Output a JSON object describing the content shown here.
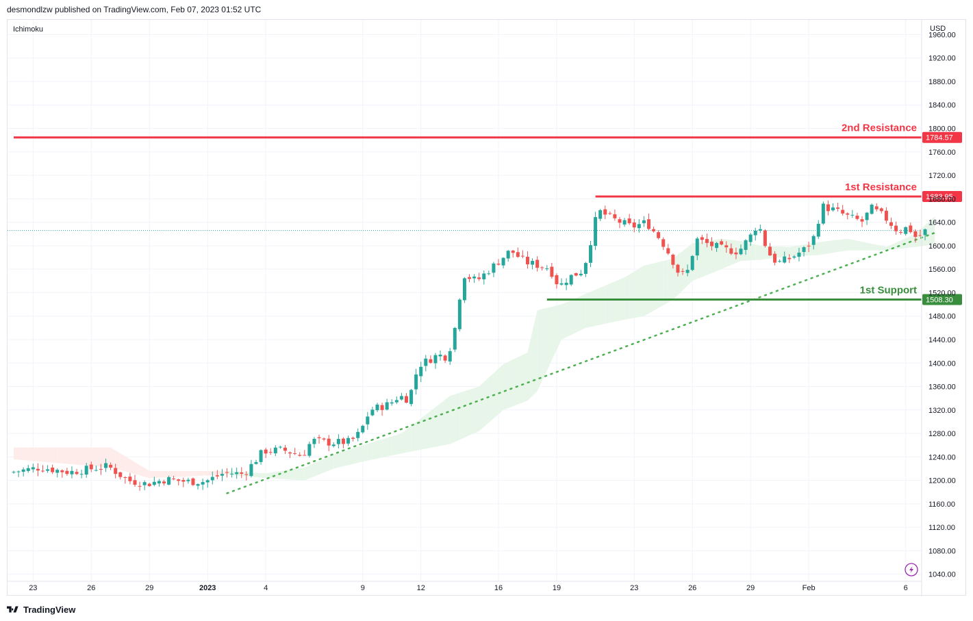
{
  "header": {
    "publish_line": "desmondlzw published on TradingView.com, Feb 07, 2023 01:52 UTC"
  },
  "footer": {
    "brand": "TradingView",
    "logo_icon": "tradingview-logo-icon"
  },
  "colors": {
    "up": "#26a69a",
    "down": "#ef5350",
    "resistance": "#f23645",
    "support": "#388e3c",
    "trend": "#4caf50",
    "cloud_up": "#e8f5e9",
    "cloud_down": "#fdecea"
  },
  "chart_data": {
    "type": "candlestick",
    "indicator_label": "Ichimoku",
    "currency_label": "USD",
    "y_ticks": [
      "1960.00",
      "1920.00",
      "1880.00",
      "1840.00",
      "1800.00",
      "1760.00",
      "1720.00",
      "1680.00",
      "1640.00",
      "1600.00",
      "1560.00",
      "1520.00",
      "1480.00",
      "1440.00",
      "1400.00",
      "1360.00",
      "1320.00",
      "1280.00",
      "1240.00",
      "1200.00",
      "1160.00",
      "1120.00",
      "1080.00",
      "1040.00"
    ],
    "y_tick_values": [
      1960,
      1920,
      1880,
      1840,
      1800,
      1760,
      1720,
      1680,
      1640,
      1600,
      1560,
      1520,
      1480,
      1440,
      1400,
      1360,
      1320,
      1280,
      1240,
      1200,
      1160,
      1120,
      1080,
      1040
    ],
    "ylim": [
      1028,
      1985
    ],
    "x_ticks": [
      {
        "label": "23",
        "bar": 4
      },
      {
        "label": "26",
        "bar": 16
      },
      {
        "label": "29",
        "bar": 28
      },
      {
        "label": "2023",
        "bar": 40,
        "bold": true
      },
      {
        "label": "4",
        "bar": 52
      },
      {
        "label": "9",
        "bar": 72
      },
      {
        "label": "12",
        "bar": 84
      },
      {
        "label": "16",
        "bar": 100
      },
      {
        "label": "19",
        "bar": 112
      },
      {
        "label": "23",
        "bar": 128
      },
      {
        "label": "26",
        "bar": 140
      },
      {
        "label": "29",
        "bar": 152
      },
      {
        "label": "Feb",
        "bar": 164
      },
      {
        "label": "6",
        "bar": 184
      }
    ],
    "anchors": [
      [
        0,
        1214
      ],
      [
        6,
        1222
      ],
      [
        12,
        1214
      ],
      [
        15,
        1218
      ],
      [
        20,
        1224
      ],
      [
        24,
        1200
      ],
      [
        28,
        1194
      ],
      [
        32,
        1202
      ],
      [
        36,
        1198
      ],
      [
        40,
        1198
      ],
      [
        44,
        1213
      ],
      [
        48,
        1211
      ],
      [
        52,
        1250
      ],
      [
        56,
        1252
      ],
      [
        60,
        1242
      ],
      [
        62,
        1268
      ],
      [
        66,
        1264
      ],
      [
        70,
        1266
      ],
      [
        72,
        1282
      ],
      [
        74,
        1320
      ],
      [
        78,
        1330
      ],
      [
        80,
        1344
      ],
      [
        82,
        1338
      ],
      [
        84,
        1396
      ],
      [
        88,
        1414
      ],
      [
        90,
        1410
      ],
      [
        92,
        1476
      ],
      [
        93,
        1552
      ],
      [
        96,
        1540
      ],
      [
        99,
        1562
      ],
      [
        103,
        1592
      ],
      [
        106,
        1572
      ],
      [
        109,
        1566
      ],
      [
        111,
        1562
      ],
      [
        113,
        1530
      ],
      [
        115,
        1546
      ],
      [
        118,
        1558
      ],
      [
        119,
        1590
      ],
      [
        121,
        1660
      ],
      [
        124,
        1646
      ],
      [
        128,
        1632
      ],
      [
        131,
        1640
      ],
      [
        134,
        1610
      ],
      [
        136,
        1582
      ],
      [
        138,
        1548
      ],
      [
        140,
        1560
      ],
      [
        141,
        1612
      ],
      [
        144,
        1602
      ],
      [
        147,
        1594
      ],
      [
        150,
        1590
      ],
      [
        153,
        1622
      ],
      [
        154,
        1640
      ],
      [
        156,
        1590
      ],
      [
        158,
        1570
      ],
      [
        161,
        1580
      ],
      [
        164,
        1596
      ],
      [
        166,
        1620
      ],
      [
        167,
        1668
      ],
      [
        170,
        1660
      ],
      [
        173,
        1648
      ],
      [
        176,
        1640
      ],
      [
        177,
        1666
      ],
      [
        180,
        1650
      ],
      [
        183,
        1624
      ],
      [
        185,
        1632
      ],
      [
        187,
        1610
      ],
      [
        188,
        1625
      ]
    ],
    "candles_count": 189,
    "levels": [
      {
        "name": "2nd Resistance",
        "value": 1784.57,
        "badge": "1784.57",
        "color": "#f23645",
        "start_bar": 0
      },
      {
        "name": "1st Resistance",
        "value": 1683.95,
        "badge": "1683.95",
        "color": "#f23645",
        "start_bar": 120
      },
      {
        "name": "1st Support",
        "value": 1508.3,
        "badge": "1508.30",
        "color": "#388e3c",
        "start_bar": 110
      }
    ],
    "trendline": {
      "from": {
        "bar": 44,
        "value": 1178
      },
      "to": {
        "bar": 190,
        "value": 1622
      },
      "style": "dotted"
    },
    "last_price_line": {
      "value": 1626
    },
    "cloud": {
      "top": [
        [
          0,
          1256
        ],
        [
          20,
          1256
        ],
        [
          28,
          1216
        ],
        [
          44,
          1216
        ],
        [
          52,
          1212
        ],
        [
          60,
          1222
        ],
        [
          66,
          1244
        ],
        [
          72,
          1260
        ],
        [
          80,
          1280
        ],
        [
          90,
          1344
        ],
        [
          96,
          1360
        ],
        [
          101,
          1398
        ],
        [
          106,
          1418
        ],
        [
          108,
          1490
        ],
        [
          113,
          1500
        ],
        [
          118,
          1518
        ],
        [
          126,
          1546
        ],
        [
          130,
          1566
        ],
        [
          136,
          1578
        ],
        [
          140,
          1604
        ],
        [
          146,
          1612
        ],
        [
          150,
          1608
        ],
        [
          154,
          1600
        ],
        [
          160,
          1598
        ],
        [
          166,
          1606
        ],
        [
          172,
          1612
        ],
        [
          180,
          1598
        ],
        [
          186,
          1620
        ],
        [
          190,
          1650
        ]
      ],
      "bottom": [
        [
          0,
          1236
        ],
        [
          20,
          1222
        ],
        [
          28,
          1204
        ],
        [
          44,
          1210
        ],
        [
          52,
          1204
        ],
        [
          60,
          1200
        ],
        [
          66,
          1220
        ],
        [
          72,
          1232
        ],
        [
          80,
          1246
        ],
        [
          90,
          1262
        ],
        [
          96,
          1284
        ],
        [
          101,
          1320
        ],
        [
          106,
          1336
        ],
        [
          108,
          1352
        ],
        [
          113,
          1440
        ],
        [
          118,
          1460
        ],
        [
          126,
          1474
        ],
        [
          130,
          1480
        ],
        [
          136,
          1508
        ],
        [
          140,
          1540
        ],
        [
          146,
          1560
        ],
        [
          150,
          1574
        ],
        [
          154,
          1576
        ],
        [
          160,
          1582
        ],
        [
          166,
          1584
        ],
        [
          172,
          1592
        ],
        [
          180,
          1592
        ],
        [
          186,
          1598
        ],
        [
          190,
          1602
        ]
      ]
    }
  }
}
